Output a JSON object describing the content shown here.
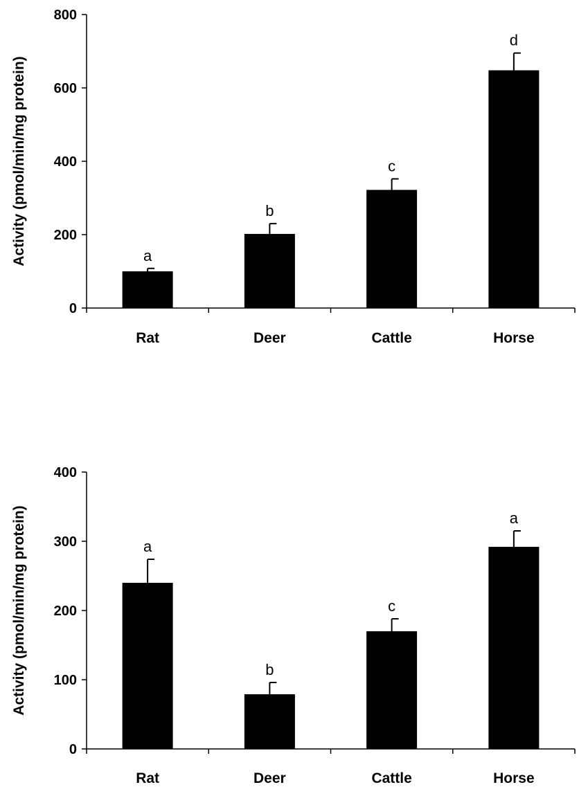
{
  "chart_data": [
    {
      "type": "bar",
      "title": "",
      "xlabel": "",
      "ylabel": "Activity (pmol/min/mg protein)",
      "ylim": [
        0,
        800
      ],
      "yticks": [
        0,
        200,
        400,
        600,
        800
      ],
      "categories": [
        "Rat",
        "Deer",
        "Cattle",
        "Horse"
      ],
      "values": [
        100,
        202,
        322,
        648
      ],
      "errors": [
        8,
        28,
        30,
        47
      ],
      "annotations": [
        "a",
        "b",
        "c",
        "d"
      ],
      "bar_color": "#000000",
      "grid": false,
      "legend": "none"
    },
    {
      "type": "bar",
      "title": "",
      "xlabel": "",
      "ylabel": "Activity (pmol/min/mg protein)",
      "ylim": [
        0,
        400
      ],
      "yticks": [
        0,
        100,
        200,
        300,
        400
      ],
      "categories": [
        "Rat",
        "Deer",
        "Cattle",
        "Horse"
      ],
      "values": [
        240,
        79,
        170,
        292
      ],
      "errors": [
        34,
        17,
        18,
        23
      ],
      "annotations": [
        "a",
        "b",
        "c",
        "a"
      ],
      "bar_color": "#000000",
      "grid": false,
      "legend": "none"
    }
  ]
}
